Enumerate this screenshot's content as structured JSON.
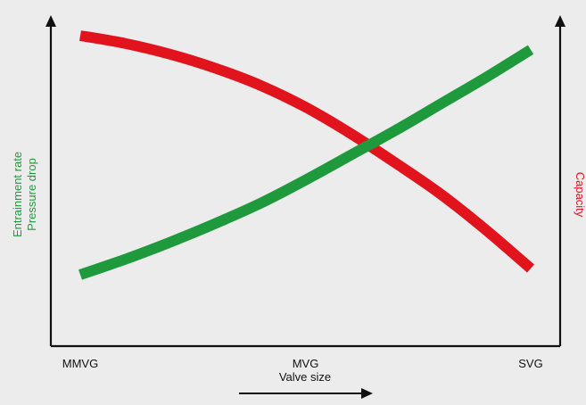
{
  "chart_data": {
    "type": "line",
    "title": "",
    "xlabel": "Valve size",
    "categories": [
      "MMVG",
      "MVG",
      "SVG"
    ],
    "xlim": [
      0,
      1
    ],
    "grid": false,
    "legend": "none",
    "left_axis": {
      "labels": [
        "Entrainment rate",
        "Pressure drop"
      ],
      "color": "#1e9a3c",
      "ylim": [
        0,
        1
      ]
    },
    "right_axis": {
      "label": "Capacity",
      "color": "#e1141e",
      "ylim": [
        0,
        1
      ]
    },
    "series": [
      {
        "axis": "left",
        "color": "#1e9a3c",
        "x": [
          0,
          0.1,
          0.2,
          0.3,
          0.4,
          0.5,
          0.6,
          0.7,
          0.8,
          0.9,
          1.0
        ],
        "values": [
          0.23,
          0.28,
          0.335,
          0.395,
          0.46,
          0.535,
          0.615,
          0.695,
          0.78,
          0.865,
          0.955
        ]
      },
      {
        "axis": "right",
        "color": "#e1141e",
        "x": [
          0,
          0.1,
          0.2,
          0.3,
          0.4,
          0.5,
          0.6,
          0.7,
          0.8,
          0.9,
          1.0
        ],
        "values": [
          1.0,
          0.975,
          0.94,
          0.895,
          0.84,
          0.77,
          0.685,
          0.59,
          0.49,
          0.375,
          0.25
        ]
      }
    ]
  }
}
